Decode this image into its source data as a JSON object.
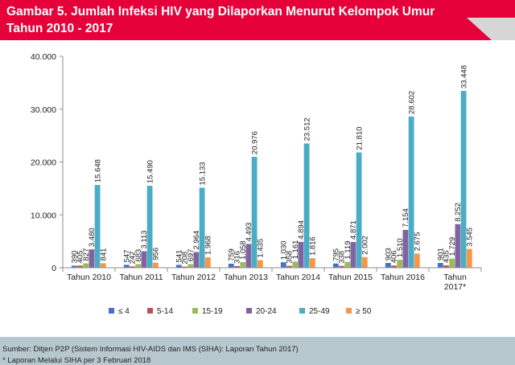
{
  "header": {
    "title_line1": "Gambar 5. Jumlah Infeksi HIV yang Dilaporkan Menurut Kelompok Umur",
    "title_line2": "Tahun 2010 - 2017"
  },
  "footer": {
    "source": "Sumber: Ditjen P2P (Sistem Informasi HIV-AIDS dan IMS (SIHA): Laporan Tahun 2017)",
    "note": "* Laporan Melalui SIHA per 3 Februari 2018"
  },
  "chart_data": {
    "type": "bar",
    "title": "Gambar 5. Jumlah Infeksi HIV yang Dilaporkan Menurut Kelompok Umur Tahun 2010 - 2017",
    "xlabel": "",
    "ylabel": "",
    "ylim": [
      0,
      40000
    ],
    "yticks": [
      "0",
      "10.000",
      "20.000",
      "30.000",
      "40.000"
    ],
    "ytick_values": [
      0,
      10000,
      20000,
      30000,
      40000
    ],
    "grid": false,
    "legend_position": "bottom",
    "categories": [
      "Tahun 2010",
      "Tahun 2011",
      "Tahun 2012",
      "Tahun 2013",
      "Tahun 2014",
      "Tahun 2015",
      "Tahun 2016",
      "Tahun 2017*"
    ],
    "category_labels": [
      [
        "Tahun 2010"
      ],
      [
        "Tahun 2011"
      ],
      [
        "Tahun 2012"
      ],
      [
        "Tahun 2013"
      ],
      [
        "Tahun 2014"
      ],
      [
        "Tahun 2015"
      ],
      [
        "Tahun 2016"
      ],
      [
        "Tahun",
        "2017*"
      ]
    ],
    "series": [
      {
        "name": "≤ 4",
        "color": "#4472c4",
        "values": [
          390,
          547,
          541,
          759,
          1030,
          795,
          903,
          901
        ],
        "labels": [
          "390",
          "547",
          "541",
          "759",
          "1.030",
          "795",
          "903",
          "901"
        ]
      },
      {
        "name": "5-14",
        "color": "#c0504d",
        "values": [
          405,
          242,
          208,
          316,
          358,
          338,
          406,
          435
        ],
        "labels": [
          "405",
          "242",
          "208",
          "316",
          "358",
          "338",
          "406",
          "435"
        ]
      },
      {
        "name": "15-19",
        "color": "#9bbb59",
        "values": [
          827,
          683,
          697,
          1058,
          1161,
          1119,
          1510,
          1729
        ],
        "labels": [
          "827",
          "683",
          "697",
          "1.058",
          "1.161",
          "1.119",
          "1.510",
          "1.729"
        ]
      },
      {
        "name": "20-24",
        "color": "#8064a2",
        "values": [
          3480,
          3113,
          2964,
          4493,
          4894,
          4871,
          7154,
          8252
        ],
        "labels": [
          "3.480",
          "3.113",
          "2.964",
          "4.493",
          "4.894",
          "4.871",
          "7.154",
          "8.252"
        ]
      },
      {
        "name": "25-49",
        "color": "#4bacc6",
        "values": [
          15648,
          15490,
          15133,
          20976,
          23512,
          21810,
          28602,
          33448
        ],
        "labels": [
          "15.648",
          "15.490",
          "15.133",
          "20.976",
          "23.512",
          "21.810",
          "28.602",
          "33.448"
        ]
      },
      {
        "name": "≥ 50",
        "color": "#f79646",
        "values": [
          841,
          956,
          1968,
          1435,
          1816,
          2002,
          2675,
          3545
        ],
        "labels": [
          "841",
          "956",
          "1.968",
          "1.435",
          "1.816",
          "2.002",
          "2.675",
          "3.545"
        ]
      }
    ]
  }
}
